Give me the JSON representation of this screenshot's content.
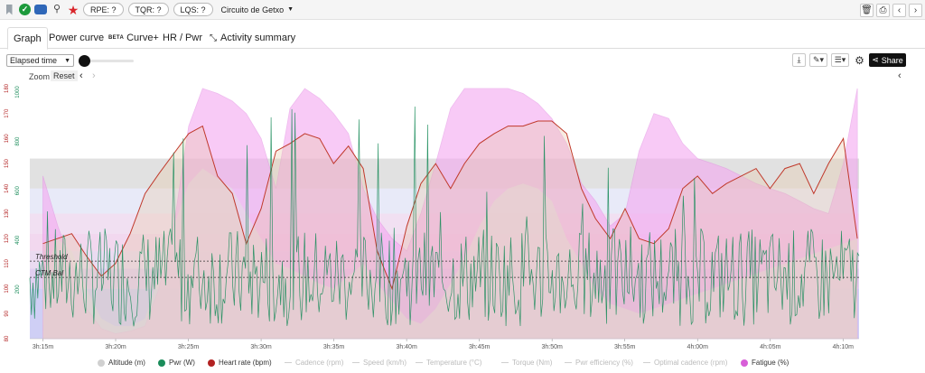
{
  "toolbar": {
    "rpe": "RPE: ?",
    "tqr": "TQR: ?",
    "lqs": "LQS: ?",
    "route": "Circuito de Getxo",
    "icons": [
      "bookmark-icon",
      "check-icon",
      "car-icon",
      "bike-icon",
      "star-icon",
      "trash-icon",
      "print-icon",
      "chevron-left-icon",
      "chevron-right-icon"
    ]
  },
  "tabs": [
    {
      "label": "Graph"
    },
    {
      "label": "Power curve"
    },
    {
      "label": "Curve+",
      "badge": "BETA"
    },
    {
      "label": "HR / Pwr"
    },
    {
      "label": "Activity summary"
    }
  ],
  "controls": {
    "x_axis_select": "Elapsed time",
    "share": "Share",
    "zoom": "Zoom",
    "reset": "Reset"
  },
  "chart_data": {
    "type": "line",
    "x_ticks": [
      "3h:15m",
      "3h:20m",
      "3h:25m",
      "3h:30m",
      "3h:35m",
      "3h:40m",
      "3h:45m",
      "3h:50m",
      "3h:55m",
      "4h:00m",
      "4h:05m",
      "4h:10m"
    ],
    "y_left_hr_ticks": [
      "80",
      "90",
      "100",
      "110",
      "120",
      "130",
      "140",
      "150",
      "160",
      "170",
      "180"
    ],
    "y_left_pwr_ticks": [
      "200",
      "400",
      "600",
      "800",
      "1000"
    ],
    "annotations": [
      "Threshold",
      "CTM Bal"
    ],
    "series": [
      {
        "name": "Altitude (m)",
        "color": "#d0d0d0",
        "active": true
      },
      {
        "name": "Pwr (W)",
        "color": "#1a8c5a",
        "active": true
      },
      {
        "name": "Heart rate (bpm)",
        "color": "#b22222",
        "active": true
      },
      {
        "name": "Cadence (rpm)",
        "active": false
      },
      {
        "name": "Speed (km/h)",
        "active": false
      },
      {
        "name": "Temperature (°C)",
        "active": false
      },
      {
        "name": "Torque (Nm)",
        "active": false
      },
      {
        "name": "Pwr efficiency (%)",
        "active": false
      },
      {
        "name": "Optimal cadence (rpm)",
        "active": false
      },
      {
        "name": "Fatigue (%)",
        "color": "#d85fd8",
        "active": true
      }
    ],
    "heart_rate": {
      "t": [
        3.25,
        3.283,
        3.3,
        3.317,
        3.333,
        3.35,
        3.367,
        3.383,
        3.4,
        3.417,
        3.433,
        3.45,
        3.467,
        3.483,
        3.5,
        3.517,
        3.533,
        3.55,
        3.567,
        3.583,
        3.6,
        3.617,
        3.633,
        3.65,
        3.667,
        3.683,
        3.7,
        3.717,
        3.733,
        3.75,
        3.767,
        3.783,
        3.8,
        3.817,
        3.833,
        3.85,
        3.867,
        3.883,
        3.9,
        3.917,
        3.933,
        3.95,
        3.967,
        3.983,
        4.0,
        4.017,
        4.033,
        4.05,
        4.067,
        4.083,
        4.1,
        4.117,
        4.133,
        4.15,
        4.167,
        4.183
      ],
      "bpm": [
        118,
        122,
        113,
        105,
        110,
        122,
        138,
        146,
        154,
        162,
        165,
        145,
        138,
        118,
        132,
        155,
        158,
        162,
        160,
        150,
        157,
        148,
        115,
        100,
        125,
        142,
        150,
        140,
        150,
        158,
        162,
        165,
        165,
        167,
        167,
        162,
        140,
        128,
        120,
        132,
        120,
        118,
        124,
        140,
        145,
        138,
        142,
        145,
        148,
        140,
        148,
        150,
        138,
        150,
        160,
        120
      ]
    },
    "fatigue_pct": {
      "t": [
        3.25,
        3.267,
        3.283,
        3.3,
        3.317,
        3.333,
        3.35,
        3.367,
        3.383,
        3.4,
        3.417,
        3.433,
        3.45,
        3.467,
        3.483,
        3.5,
        3.517,
        3.533,
        3.55,
        3.567,
        3.583,
        3.6,
        3.617,
        3.633,
        3.65,
        3.667,
        3.683,
        3.7,
        3.717,
        3.733,
        3.75,
        3.767,
        3.783,
        3.8,
        3.817,
        3.833,
        3.85,
        3.867,
        3.883,
        3.9,
        3.917,
        3.933,
        3.95,
        3.967,
        3.983,
        4.0,
        4.017,
        4.033,
        4.05,
        4.067,
        4.083,
        4.1,
        4.117,
        4.133,
        4.15,
        4.167,
        4.183
      ],
      "pct": [
        65,
        45,
        30,
        12,
        4,
        2,
        3,
        5,
        20,
        45,
        85,
        100,
        98,
        95,
        90,
        80,
        60,
        92,
        100,
        96,
        90,
        82,
        60,
        48,
        40,
        35,
        50,
        70,
        92,
        100,
        100,
        100,
        100,
        98,
        94,
        88,
        78,
        62,
        55,
        45,
        50,
        75,
        90,
        88,
        78,
        72,
        70,
        68,
        65,
        62,
        60,
        58,
        55,
        52,
        50,
        70,
        100
      ]
    },
    "altitude_m": {
      "t": [
        3.25,
        3.267,
        3.283,
        3.3,
        3.317,
        3.333,
        3.35,
        3.367,
        3.383,
        3.4,
        3.417,
        3.433,
        3.45,
        3.467,
        3.483,
        3.5,
        3.517,
        3.533,
        3.55,
        3.567,
        3.583,
        3.6,
        3.617,
        3.633,
        3.65,
        3.667,
        3.683,
        3.7,
        3.717,
        3.733,
        3.75,
        3.767,
        3.783,
        3.8,
        3.817,
        3.833,
        3.85,
        3.867,
        3.883,
        3.9,
        3.917,
        3.933,
        3.95,
        3.967,
        3.983,
        4.0,
        4.017,
        4.033,
        4.05,
        4.067,
        4.083,
        4.1,
        4.117,
        4.133,
        4.15,
        4.167,
        4.183
      ],
      "m": [
        25,
        40,
        35,
        20,
        8,
        5,
        5,
        8,
        25,
        45,
        62,
        68,
        64,
        60,
        50,
        40,
        30,
        28,
        25,
        22,
        20,
        25,
        30,
        22,
        15,
        8,
        6,
        12,
        22,
        32,
        45,
        55,
        60,
        62,
        60,
        55,
        40,
        30,
        20,
        14,
        12,
        10,
        12,
        14,
        16,
        18,
        20,
        22,
        24,
        26,
        28,
        30,
        32,
        34,
        36,
        38,
        40
      ]
    },
    "power_w": {
      "mean": 250,
      "peak": 1000
    }
  }
}
